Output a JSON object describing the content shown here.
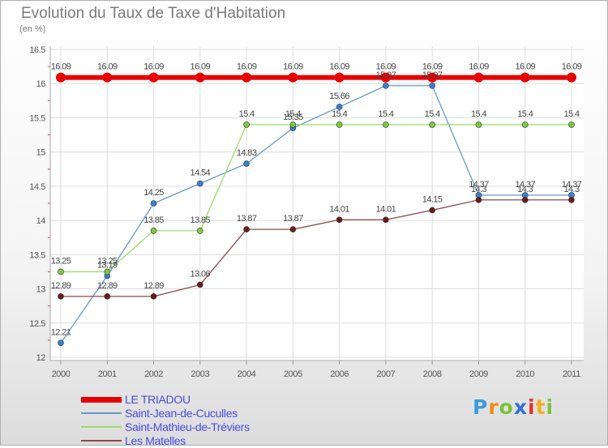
{
  "title": "Evolution du Taux de Taxe d'Habitation",
  "subtitle": "(en %)",
  "logo": {
    "letters": [
      {
        "ch": "P",
        "color": "#3b9be0"
      },
      {
        "ch": "r",
        "color": "#f08a1c"
      },
      {
        "ch": "o",
        "color": "#7cc23c"
      },
      {
        "ch": "x",
        "color": "#2f6fd6"
      },
      {
        "ch": "i",
        "color": "#e2342a"
      },
      {
        "ch": "t",
        "color": "#f2b01e"
      },
      {
        "ch": "i",
        "color": "#7cc23c"
      }
    ]
  },
  "chart_data": {
    "type": "line",
    "x": [
      "2000",
      "2001",
      "2002",
      "2003",
      "2004",
      "2005",
      "2006",
      "2007",
      "2008",
      "2009",
      "2010",
      "2011"
    ],
    "ylim": [
      12,
      16.5
    ],
    "yticks": [
      "12",
      "12.5",
      "13",
      "13.5",
      "14",
      "14.5",
      "15",
      "15.5",
      "16",
      "16.5"
    ],
    "grid": true,
    "legend_position": "bottom-left",
    "series": [
      {
        "name": "LE TRIADOU",
        "color": "#e60000",
        "width": 6,
        "marker": 6,
        "values": [
          16.09,
          16.09,
          16.09,
          16.09,
          16.09,
          16.09,
          16.09,
          16.09,
          16.09,
          16.09,
          16.09,
          16.09
        ],
        "labels": [
          "16.09",
          "16.09",
          "16.09",
          "16.09",
          "16.09",
          "16.09",
          "16.09",
          "16.09",
          "16.09",
          "16.09",
          "16.09",
          "16.09"
        ]
      },
      {
        "name": "Saint-Jean-de-Cuculles",
        "color": "#6699cc",
        "fill": "#3a7fd0",
        "width": 1.3,
        "marker": 3.5,
        "values": [
          12.21,
          13.19,
          14.25,
          14.54,
          14.83,
          15.35,
          15.66,
          15.97,
          15.97,
          14.37,
          14.37,
          14.37
        ],
        "labels": [
          "12.21",
          "13.19",
          "14.25",
          "14.54",
          "14.83",
          "15.35",
          "15.66",
          "15.97",
          "15.97",
          "14.37",
          "14.37",
          "14.37"
        ]
      },
      {
        "name": "Saint-Mathieu-de-Tréviers",
        "color": "#99dd66",
        "fill": "#7ccc3c",
        "width": 1.3,
        "marker": 3.5,
        "values": [
          13.25,
          13.25,
          13.85,
          13.85,
          15.4,
          15.4,
          15.4,
          15.4,
          15.4,
          15.4,
          15.4,
          15.4
        ],
        "labels": [
          "13.25",
          "13.25",
          "13.85",
          "13.85",
          "15.4",
          "15.4",
          "15.4",
          "15.4",
          "15.4",
          "15.4",
          "15.4",
          "15.4"
        ]
      },
      {
        "name": "Les Matelles",
        "color": "#8a4a4a",
        "fill": "#6a1a1a",
        "width": 1.3,
        "marker": 3.5,
        "values": [
          12.89,
          12.89,
          12.89,
          13.06,
          13.87,
          13.87,
          14.01,
          14.01,
          14.15,
          14.3,
          14.3,
          14.3
        ],
        "labels": [
          "12.89",
          "12.89",
          "12.89",
          "13.06",
          "13.87",
          "13.87",
          "14.01",
          "14.01",
          "14.15",
          "14.3",
          "14.3",
          "14.3"
        ]
      }
    ]
  }
}
